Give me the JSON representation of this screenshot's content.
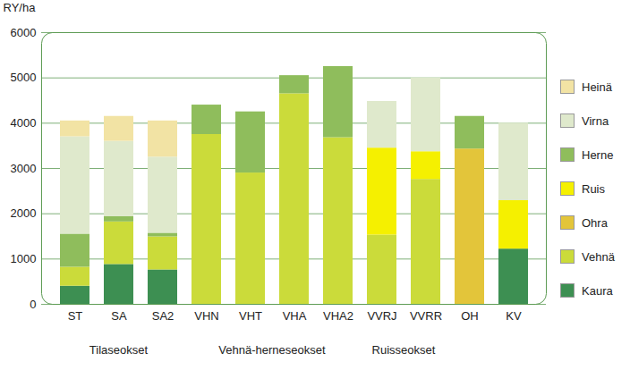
{
  "chart_data": {
    "type": "bar",
    "stacked": true,
    "grid": true,
    "legend": "right",
    "y_label": "RY/ha",
    "categories": [
      "ST",
      "SA",
      "SA2",
      "VHN",
      "VHT",
      "VHA",
      "VHA2",
      "VVRJ",
      "VVRR",
      "OH",
      "KV"
    ],
    "ylim": [
      0,
      6000
    ],
    "yticks": [
      0,
      1000,
      2000,
      3000,
      4000,
      5000,
      6000
    ],
    "groups": [
      {
        "name": "Tilaseokset",
        "from": "ST",
        "to": "SA2"
      },
      {
        "name": "Vehnä-herneseokset",
        "from": "VHN",
        "to": "VHA2"
      },
      {
        "name": "Ruisseokset",
        "from": "VVRJ",
        "to": "VVRR"
      }
    ],
    "series": [
      {
        "name": "Kaura",
        "color": "#3d8f52",
        "values": [
          400,
          880,
          760,
          0,
          0,
          0,
          0,
          0,
          0,
          0,
          1220
        ]
      },
      {
        "name": "Vehnä",
        "color": "#cbdb3a",
        "values": [
          420,
          940,
          730,
          3750,
          2900,
          4650,
          3680,
          1530,
          2760,
          0,
          0
        ]
      },
      {
        "name": "Ohra",
        "color": "#e3c53a",
        "values": [
          0,
          0,
          0,
          0,
          0,
          0,
          0,
          0,
          0,
          3430,
          0
        ]
      },
      {
        "name": "Ruis",
        "color": "#f5f000",
        "values": [
          0,
          0,
          0,
          0,
          0,
          0,
          0,
          1920,
          610,
          0,
          1070
        ]
      },
      {
        "name": "Herne",
        "color": "#8fbd5c",
        "values": [
          730,
          120,
          80,
          650,
          1350,
          400,
          1570,
          0,
          0,
          720,
          0
        ]
      },
      {
        "name": "Virna",
        "color": "#dfe9cc",
        "values": [
          2150,
          1660,
          1680,
          0,
          0,
          0,
          0,
          1030,
          1630,
          0,
          1710
        ]
      },
      {
        "name": "Heinä",
        "color": "#f2e3a4",
        "values": [
          350,
          550,
          800,
          0,
          0,
          0,
          0,
          0,
          0,
          0,
          0
        ]
      }
    ]
  }
}
